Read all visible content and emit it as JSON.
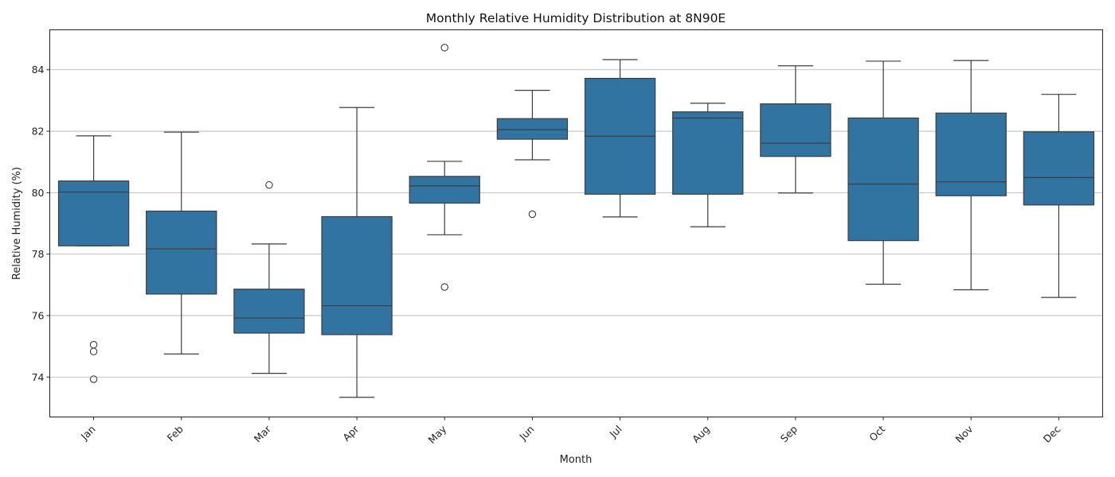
{
  "chart_data": {
    "type": "box",
    "title": "Monthly Relative Humidity Distribution at 8N90E",
    "xlabel": "Month",
    "ylabel": "Relative Humidity (%)",
    "ylim": [
      72.7,
      85.3
    ],
    "yticks": [
      74,
      76,
      78,
      80,
      82,
      84
    ],
    "grid": "horizontal",
    "box_color": "#3274a1",
    "line_color": "#3d3d3d",
    "categories": [
      "Jan",
      "Feb",
      "Mar",
      "Apr",
      "May",
      "Jun",
      "Jul",
      "Aug",
      "Sep",
      "Oct",
      "Nov",
      "Dec"
    ],
    "boxes": [
      {
        "whislo": 78.27,
        "q1": 78.27,
        "med": 80.02,
        "q3": 80.38,
        "whishi": 81.85,
        "fliers": [
          75.05,
          74.83,
          73.93
        ]
      },
      {
        "whislo": 74.75,
        "q1": 76.7,
        "med": 78.17,
        "q3": 79.4,
        "whishi": 81.97,
        "fliers": []
      },
      {
        "whislo": 74.12,
        "q1": 75.43,
        "med": 75.92,
        "q3": 76.86,
        "whishi": 78.33,
        "fliers": [
          80.25
        ]
      },
      {
        "whislo": 73.34,
        "q1": 75.38,
        "med": 76.32,
        "q3": 79.22,
        "whishi": 82.77,
        "fliers": []
      },
      {
        "whislo": 78.63,
        "q1": 79.66,
        "med": 80.22,
        "q3": 80.53,
        "whishi": 81.02,
        "fliers": [
          84.72,
          76.93
        ]
      },
      {
        "whislo": 81.07,
        "q1": 81.74,
        "med": 82.05,
        "q3": 82.41,
        "whishi": 83.33,
        "fliers": [
          79.3
        ]
      },
      {
        "whislo": 79.21,
        "q1": 79.95,
        "med": 81.84,
        "q3": 83.72,
        "whishi": 84.33,
        "fliers": []
      },
      {
        "whislo": 78.89,
        "q1": 79.95,
        "med": 82.43,
        "q3": 82.63,
        "whishi": 82.91,
        "fliers": []
      },
      {
        "whislo": 79.99,
        "q1": 81.18,
        "med": 81.61,
        "q3": 82.89,
        "whishi": 84.13,
        "fliers": []
      },
      {
        "whislo": 77.02,
        "q1": 78.44,
        "med": 80.28,
        "q3": 82.43,
        "whishi": 84.28,
        "fliers": []
      },
      {
        "whislo": 76.84,
        "q1": 79.9,
        "med": 80.35,
        "q3": 82.59,
        "whishi": 84.3,
        "fliers": []
      },
      {
        "whislo": 76.59,
        "q1": 79.6,
        "med": 80.49,
        "q3": 81.98,
        "whishi": 83.2,
        "fliers": []
      }
    ]
  }
}
